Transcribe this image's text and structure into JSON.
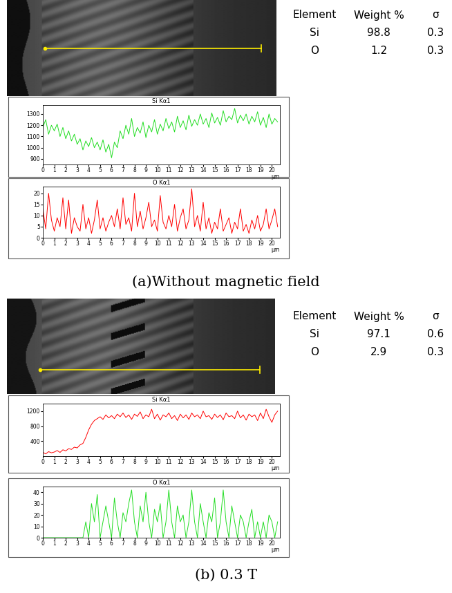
{
  "chart_data": [
    {
      "type": "line",
      "title": "Si Kα1",
      "xlabel": "μm",
      "color": "#22dd22",
      "x": [
        0,
        0.25,
        0.5,
        0.75,
        1,
        1.25,
        1.5,
        1.75,
        2,
        2.25,
        2.5,
        2.75,
        3,
        3.25,
        3.5,
        3.75,
        4,
        4.25,
        4.5,
        4.75,
        5,
        5.25,
        5.5,
        5.75,
        6,
        6.25,
        6.5,
        6.75,
        7,
        7.25,
        7.5,
        7.75,
        8,
        8.25,
        8.5,
        8.75,
        9,
        9.25,
        9.5,
        9.75,
        10,
        10.25,
        10.5,
        10.75,
        11,
        11.25,
        11.5,
        11.75,
        12,
        12.25,
        12.5,
        12.75,
        13,
        13.25,
        13.5,
        13.75,
        14,
        14.25,
        14.5,
        14.75,
        15,
        15.25,
        15.5,
        15.75,
        16,
        16.25,
        16.5,
        16.75,
        17,
        17.25,
        17.5,
        17.75,
        18,
        18.25,
        18.5,
        18.75,
        19,
        19.25,
        19.5,
        19.75,
        20,
        20.25,
        20.5
      ],
      "values": [
        1180,
        1250,
        1120,
        1200,
        1150,
        1210,
        1100,
        1180,
        1080,
        1150,
        1060,
        1120,
        1030,
        1080,
        980,
        1060,
        1010,
        1090,
        1000,
        1050,
        980,
        1070,
        960,
        1030,
        910,
        1050,
        1000,
        1150,
        1080,
        1200,
        1120,
        1260,
        1100,
        1180,
        1130,
        1230,
        1090,
        1200,
        1140,
        1250,
        1120,
        1210,
        1150,
        1260,
        1170,
        1230,
        1140,
        1280,
        1180,
        1240,
        1160,
        1290,
        1190,
        1250,
        1200,
        1300,
        1210,
        1260,
        1180,
        1310,
        1220,
        1270,
        1200,
        1330,
        1230,
        1280,
        1250,
        1350,
        1220,
        1290,
        1240,
        1300,
        1210,
        1280,
        1230,
        1320,
        1200,
        1270,
        1180,
        1300,
        1210,
        1260,
        1230
      ],
      "xlim": [
        0,
        20.7
      ],
      "xticks": [
        0,
        1,
        2,
        3,
        4,
        5,
        6,
        7,
        8,
        9,
        10,
        11,
        12,
        13,
        14,
        15,
        16,
        17,
        18,
        19,
        20
      ],
      "ylim": [
        850,
        1380
      ],
      "yticks": [
        900,
        1000,
        1100,
        1200,
        1300
      ]
    },
    {
      "type": "line",
      "title": "O Kα1",
      "xlabel": "μm",
      "color": "#ff0000",
      "x": [
        0,
        0.25,
        0.5,
        0.75,
        1,
        1.25,
        1.5,
        1.75,
        2,
        2.25,
        2.5,
        2.75,
        3,
        3.25,
        3.5,
        3.75,
        4,
        4.25,
        4.5,
        4.75,
        5,
        5.25,
        5.5,
        5.75,
        6,
        6.25,
        6.5,
        6.75,
        7,
        7.25,
        7.5,
        7.75,
        8,
        8.25,
        8.5,
        8.75,
        9,
        9.25,
        9.5,
        9.75,
        10,
        10.25,
        10.5,
        10.75,
        11,
        11.25,
        11.5,
        11.75,
        12,
        12.25,
        12.5,
        12.75,
        13,
        13.25,
        13.5,
        13.75,
        14,
        14.25,
        14.5,
        14.75,
        15,
        15.25,
        15.5,
        15.75,
        16,
        16.25,
        16.5,
        16.75,
        17,
        17.25,
        17.5,
        17.75,
        18,
        18.25,
        18.5,
        18.75,
        19,
        19.25,
        19.5,
        19.75,
        20,
        20.25,
        20.5
      ],
      "values": [
        13,
        4,
        20,
        8,
        3,
        9,
        5,
        18,
        4,
        17,
        2,
        9,
        5,
        3,
        15,
        4,
        9,
        2,
        8,
        17,
        4,
        9,
        3,
        7,
        10,
        5,
        13,
        4,
        18,
        6,
        9,
        3,
        20,
        5,
        12,
        4,
        9,
        16,
        5,
        8,
        3,
        19,
        7,
        4,
        10,
        5,
        15,
        3,
        9,
        13,
        4,
        8,
        22,
        5,
        10,
        3,
        16,
        4,
        9,
        2,
        7,
        4,
        13,
        3,
        6,
        9,
        2,
        7,
        4,
        13,
        3,
        6,
        2,
        8,
        4,
        10,
        3,
        6,
        13,
        4,
        8,
        13,
        5
      ],
      "xlim": [
        0,
        20.7
      ],
      "xticks": [
        0,
        1,
        2,
        3,
        4,
        5,
        6,
        7,
        8,
        9,
        10,
        11,
        12,
        13,
        14,
        15,
        16,
        17,
        18,
        19,
        20
      ],
      "ylim": [
        0,
        23
      ],
      "yticks": [
        0,
        5,
        10,
        15,
        20
      ]
    },
    {
      "type": "line",
      "title": "Si Kα1",
      "xlabel": "μm",
      "color": "#ff0000",
      "x": [
        0,
        0.25,
        0.5,
        0.75,
        1,
        1.25,
        1.5,
        1.75,
        2,
        2.25,
        2.5,
        2.75,
        3,
        3.25,
        3.5,
        3.75,
        4,
        4.25,
        4.5,
        4.75,
        5,
        5.25,
        5.5,
        5.75,
        6,
        6.25,
        6.5,
        6.75,
        7,
        7.25,
        7.5,
        7.75,
        8,
        8.25,
        8.5,
        8.75,
        9,
        9.25,
        9.5,
        9.75,
        10,
        10.25,
        10.5,
        10.75,
        11,
        11.25,
        11.5,
        11.75,
        12,
        12.25,
        12.5,
        12.75,
        13,
        13.25,
        13.5,
        13.75,
        14,
        14.25,
        14.5,
        14.75,
        15,
        15.25,
        15.5,
        15.75,
        16,
        16.25,
        16.5,
        16.75,
        17,
        17.25,
        17.5,
        17.75,
        18,
        18.25,
        18.5,
        18.75,
        19,
        19.25,
        19.5,
        19.75,
        20,
        20.25,
        20.5
      ],
      "values": [
        100,
        60,
        120,
        90,
        110,
        150,
        100,
        170,
        140,
        200,
        180,
        240,
        220,
        300,
        340,
        500,
        700,
        850,
        950,
        1000,
        1050,
        980,
        1100,
        1020,
        1080,
        1000,
        1120,
        1050,
        1150,
        1030,
        1100,
        980,
        1120,
        1060,
        1180,
        1000,
        1100,
        1050,
        1250,
        1000,
        1120,
        960,
        1100,
        1050,
        1150,
        1000,
        1080,
        950,
        1120,
        1020,
        1100,
        980,
        1150,
        1050,
        1100,
        1000,
        1200,
        1050,
        1080,
        980,
        1120,
        1030,
        1100,
        970,
        1150,
        1050,
        1080,
        1000,
        1200,
        1020,
        1100,
        960,
        1120,
        1050,
        1100,
        950,
        1150,
        1000,
        1250,
        1050,
        900,
        1100,
        1200
      ],
      "xlim": [
        0,
        20.7
      ],
      "xticks": [
        0,
        1,
        2,
        3,
        4,
        5,
        6,
        7,
        8,
        9,
        10,
        11,
        12,
        13,
        14,
        15,
        16,
        17,
        18,
        19,
        20
      ],
      "ylim": [
        0,
        1400
      ],
      "yticks": [
        400,
        800,
        1200
      ]
    },
    {
      "type": "line",
      "title": "O Kα1",
      "xlabel": "μm",
      "color": "#22dd22",
      "x": [
        0,
        0.25,
        0.5,
        0.75,
        1,
        1.25,
        1.5,
        1.75,
        2,
        2.25,
        2.5,
        2.75,
        3,
        3.25,
        3.5,
        3.75,
        4,
        4.25,
        4.5,
        4.75,
        5,
        5.25,
        5.5,
        5.75,
        6,
        6.25,
        6.5,
        6.75,
        7,
        7.25,
        7.5,
        7.75,
        8,
        8.25,
        8.5,
        8.75,
        9,
        9.25,
        9.5,
        9.75,
        10,
        10.25,
        10.5,
        10.75,
        11,
        11.25,
        11.5,
        11.75,
        12,
        12.25,
        12.5,
        12.75,
        13,
        13.25,
        13.5,
        13.75,
        14,
        14.25,
        14.5,
        14.75,
        15,
        15.25,
        15.5,
        15.75,
        16,
        16.25,
        16.5,
        16.75,
        17,
        17.25,
        17.5,
        17.75,
        18,
        18.25,
        18.5,
        18.75,
        19,
        19.25,
        19.5,
        19.75,
        20,
        20.25,
        20.5
      ],
      "values": [
        0,
        0,
        0,
        0,
        0,
        0,
        0,
        0,
        0,
        0,
        0,
        0,
        0,
        0,
        0,
        14,
        0,
        30,
        14,
        38,
        0,
        14,
        28,
        14,
        0,
        35,
        14,
        0,
        22,
        14,
        30,
        42,
        14,
        0,
        28,
        14,
        40,
        14,
        0,
        25,
        14,
        30,
        0,
        14,
        42,
        14,
        0,
        28,
        14,
        20,
        0,
        14,
        42,
        14,
        0,
        30,
        14,
        0,
        22,
        14,
        35,
        0,
        14,
        42,
        14,
        0,
        28,
        14,
        0,
        20,
        14,
        0,
        14,
        25,
        0,
        14,
        0,
        14,
        0,
        20,
        14,
        0,
        14
      ],
      "xlim": [
        0,
        20.7
      ],
      "xticks": [
        0,
        1,
        2,
        3,
        4,
        5,
        6,
        7,
        8,
        9,
        10,
        11,
        12,
        13,
        14,
        15,
        16,
        17,
        18,
        19,
        20
      ],
      "ylim": [
        0,
        45
      ],
      "yticks": [
        0,
        10,
        20,
        30,
        40
      ]
    }
  ],
  "panels": [
    {
      "caption": "(a)Without magnetic field",
      "table": {
        "header": [
          "Element",
          "Weight %",
          "σ"
        ],
        "rows": [
          [
            "Si",
            98.8,
            0.3
          ],
          [
            "O",
            1.2,
            0.3
          ]
        ]
      }
    },
    {
      "caption": "(b) 0.3 T",
      "table": {
        "header": [
          "Element",
          "Weight %",
          "σ"
        ],
        "rows": [
          [
            "Si",
            97.1,
            0.6
          ],
          [
            "O",
            2.9,
            0.3
          ]
        ]
      }
    }
  ]
}
